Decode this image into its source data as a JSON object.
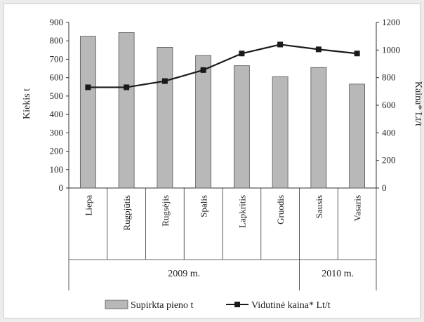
{
  "chart_data": {
    "type": "bar+line",
    "categories": [
      "Liepa",
      "Rugpjūtis",
      "Rugsėjis",
      "Spalis",
      "Lapkritis",
      "Gruodis",
      "Sausis",
      "Vasaris"
    ],
    "groups": [
      {
        "label": "2009 m.",
        "from": 0,
        "to": 5
      },
      {
        "label": "2010 m.",
        "from": 6,
        "to": 7
      }
    ],
    "series": [
      {
        "name": "Supirkta pieno t",
        "kind": "bar",
        "axis": "left",
        "values": [
          825,
          845,
          765,
          720,
          665,
          605,
          655,
          565
        ]
      },
      {
        "name": "Vidutinė kaina* Lt/t",
        "kind": "line",
        "axis": "right",
        "values": [
          730,
          730,
          775,
          855,
          975,
          1040,
          1005,
          975
        ]
      }
    ],
    "ylabel_left": "Kiekis t",
    "ylabel_right": "Kaina* Lt/t",
    "ylim_left": [
      0,
      900
    ],
    "ylim_right": [
      0,
      1200
    ],
    "yticks_left": [
      0,
      100,
      200,
      300,
      400,
      500,
      600,
      700,
      800,
      900
    ],
    "yticks_right": [
      0,
      200,
      400,
      600,
      800,
      1000,
      1200
    ],
    "grid": false,
    "legend_position": "bottom",
    "colors": {
      "bar_fill": "#b8b8b8",
      "bar_stroke": "#555555",
      "line": "#1a1a1a",
      "axis": "#333333"
    }
  }
}
